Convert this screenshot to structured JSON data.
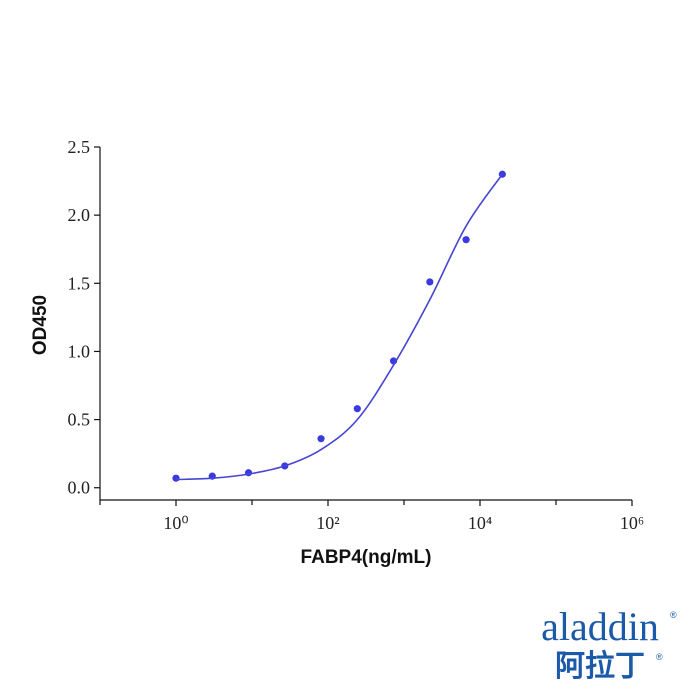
{
  "chart_data": {
    "type": "scatter",
    "xlabel": "FABP4(ng/mL)",
    "ylabel": "OD450",
    "xscale": "log",
    "xlim": [
      0.1,
      1000000
    ],
    "ylim": [
      -0.09,
      2.5
    ],
    "xticks": [
      {
        "value": 1,
        "label": "10⁰"
      },
      {
        "value": 100,
        "label": "10²"
      },
      {
        "value": 10000,
        "label": "10⁴"
      },
      {
        "value": 1000000,
        "label": "10⁶"
      }
    ],
    "xminorticks": [
      0.1,
      10,
      1000,
      100000
    ],
    "yticks": [
      {
        "value": 0,
        "label": "0.0"
      },
      0.5,
      {
        "value": 1,
        "label": "1.0"
      },
      1.5,
      {
        "value": 2,
        "label": "2.0"
      },
      2.5
    ],
    "series": [
      {
        "kind": "points",
        "color": "#3a3ae0",
        "x": [
          1,
          3,
          9,
          27,
          81,
          243,
          729,
          2187,
          6561,
          19683
        ],
        "values": [
          0.07,
          0.085,
          0.11,
          0.16,
          0.36,
          0.58,
          0.93,
          1.51,
          1.82,
          2.3
        ]
      },
      {
        "kind": "curve",
        "color": "#4646d2",
        "x": [
          1,
          3,
          9,
          27,
          81,
          243,
          729,
          2187,
          6561,
          19683
        ],
        "values": [
          0.06,
          0.07,
          0.1,
          0.16,
          0.28,
          0.5,
          0.9,
          1.38,
          1.92,
          2.3
        ]
      }
    ]
  },
  "logo": {
    "text": "aladdin",
    "cn": "阿拉丁",
    "mark": "®"
  }
}
